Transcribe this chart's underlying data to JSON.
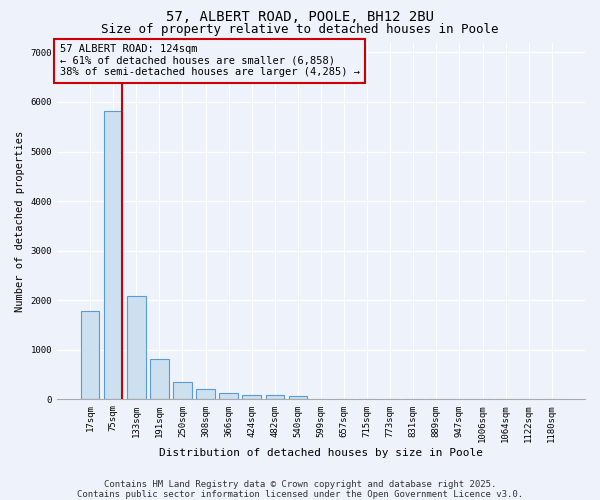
{
  "title1": "57, ALBERT ROAD, POOLE, BH12 2BU",
  "title2": "Size of property relative to detached houses in Poole",
  "xlabel": "Distribution of detached houses by size in Poole",
  "ylabel": "Number of detached properties",
  "categories": [
    "17sqm",
    "75sqm",
    "133sqm",
    "191sqm",
    "250sqm",
    "308sqm",
    "366sqm",
    "424sqm",
    "482sqm",
    "540sqm",
    "599sqm",
    "657sqm",
    "715sqm",
    "773sqm",
    "831sqm",
    "889sqm",
    "947sqm",
    "1006sqm",
    "1064sqm",
    "1122sqm",
    "1180sqm"
  ],
  "values": [
    1780,
    5820,
    2080,
    820,
    360,
    220,
    130,
    90,
    90,
    60,
    0,
    0,
    0,
    0,
    0,
    0,
    0,
    0,
    0,
    0,
    0
  ],
  "bar_color": "#cce0f0",
  "bar_edge_color": "#5b9bd5",
  "vline_color": "#cc0000",
  "annotation_text": "57 ALBERT ROAD: 124sqm\n← 61% of detached houses are smaller (6,858)\n38% of semi-detached houses are larger (4,285) →",
  "annotation_box_color": "#cc0000",
  "ylim": [
    0,
    7200
  ],
  "yticks": [
    0,
    1000,
    2000,
    3000,
    4000,
    5000,
    6000,
    7000
  ],
  "background_color": "#eef2fa",
  "grid_color": "#ffffff",
  "footer1": "Contains HM Land Registry data © Crown copyright and database right 2025.",
  "footer2": "Contains public sector information licensed under the Open Government Licence v3.0.",
  "title1_fontsize": 10,
  "title2_fontsize": 9,
  "annot_fontsize": 7.5,
  "footer_fontsize": 6.5,
  "tick_fontsize": 6.5,
  "ylabel_fontsize": 7.5,
  "xlabel_fontsize": 8
}
